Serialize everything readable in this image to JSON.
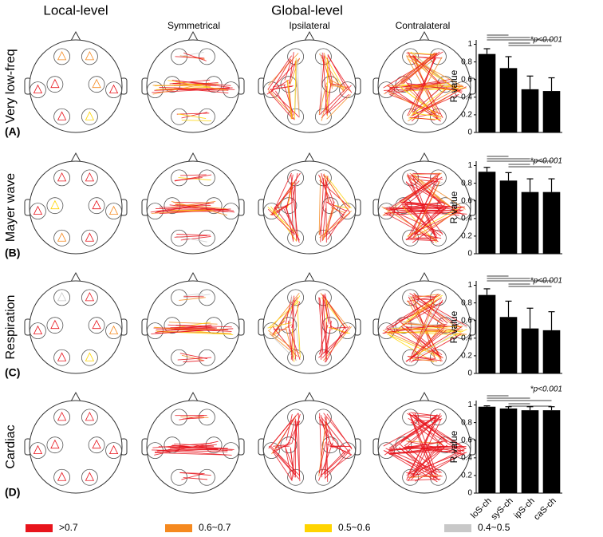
{
  "figure": {
    "local_title": "Local-level",
    "global_title": "Global-level",
    "columns": [
      "Symmetrical",
      "Ipsilateral",
      "Contralateral"
    ],
    "rows": [
      {
        "name": "Very low-freq",
        "tag": "(A)"
      },
      {
        "name": "Mayer wave",
        "tag": "(B)"
      },
      {
        "name": "Respiration",
        "tag": "(C)"
      },
      {
        "name": "Cardiac",
        "tag": "(D)"
      }
    ],
    "legend": [
      {
        "label": ">0.7",
        "color": "#e8141c"
      },
      {
        "label": "0.6~0.7",
        "color": "#f5891f"
      },
      {
        "label": "0.5~0.6",
        "color": "#ffd400"
      },
      {
        "label": "0.4~0.5",
        "color": "#c8c8c8"
      }
    ]
  },
  "chart_data": [
    {
      "type": "bar",
      "ylabel": "R value",
      "categories": [
        null,
        null,
        null,
        null
      ],
      "values": [
        0.89,
        0.73,
        0.49,
        0.47
      ],
      "errors": [
        0.06,
        0.13,
        0.15,
        0.15
      ],
      "color": "#000000",
      "ylim": [
        0,
        1.05
      ],
      "yticks": [
        0,
        0.2,
        0.4,
        0.6,
        0.8,
        1
      ],
      "annotation": "*p<0.001"
    },
    {
      "type": "bar",
      "ylabel": "R value",
      "categories": [
        null,
        null,
        null,
        null
      ],
      "values": [
        0.93,
        0.83,
        0.7,
        0.7
      ],
      "errors": [
        0.05,
        0.09,
        0.15,
        0.15
      ],
      "color": "#000000",
      "ylim": [
        0,
        1.05
      ],
      "yticks": [
        0,
        0.2,
        0.4,
        0.6,
        0.8,
        1
      ],
      "annotation": "*p<0.001"
    },
    {
      "type": "bar",
      "ylabel": "R value",
      "categories": [
        null,
        null,
        null,
        null
      ],
      "values": [
        0.89,
        0.64,
        0.51,
        0.49
      ],
      "errors": [
        0.07,
        0.18,
        0.23,
        0.21
      ],
      "color": "#000000",
      "ylim": [
        0,
        1.05
      ],
      "yticks": [
        0,
        0.2,
        0.4,
        0.6,
        0.8,
        1
      ],
      "annotation": "*p<0.001"
    },
    {
      "type": "bar",
      "ylabel": "R value",
      "categories": [
        "loS-ch",
        "syS-ch",
        "ipS-ch",
        "caS-ch"
      ],
      "values": [
        0.98,
        0.96,
        0.94,
        0.94
      ],
      "errors": [
        0.01,
        0.02,
        0.04,
        0.04
      ],
      "color": "#000000",
      "ylim": [
        0,
        1.05
      ],
      "yticks": [
        0,
        0.2,
        0.4,
        0.6,
        0.8,
        1
      ],
      "annotation": "*p<0.001"
    }
  ]
}
